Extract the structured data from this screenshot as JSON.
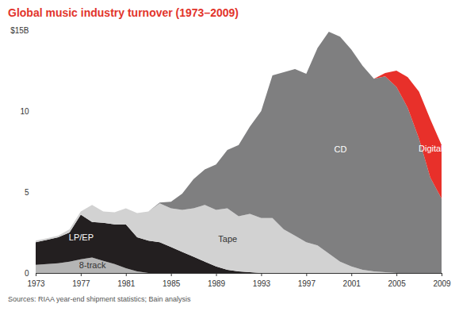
{
  "chart_data": {
    "type": "area",
    "title": "Global music industry turnover (1973–2009)",
    "source": "Sources: RIAA year-end shipment statistics; Bain analysis",
    "stacked": true,
    "grid": false,
    "x": [
      1973,
      1974,
      1975,
      1976,
      1977,
      1978,
      1979,
      1980,
      1981,
      1982,
      1983,
      1984,
      1985,
      1986,
      1987,
      1988,
      1989,
      1990,
      1991,
      1992,
      1993,
      1994,
      1995,
      1996,
      1997,
      1998,
      1999,
      2000,
      2001,
      2002,
      2003,
      2004,
      2005,
      2006,
      2007,
      2008,
      2009
    ],
    "xlim": [
      1973,
      2009
    ],
    "xticks": [
      1973,
      1977,
      1981,
      1985,
      1989,
      1993,
      1997,
      2001,
      2005,
      2009
    ],
    "ylim": [
      0,
      15
    ],
    "yticks": [
      0,
      5,
      10,
      {
        "value": 15,
        "label": "$15B"
      }
    ],
    "series": [
      {
        "name": "8-track",
        "color": "#b5b5b5",
        "values": [
          0.5,
          0.55,
          0.6,
          0.7,
          0.85,
          0.95,
          0.75,
          0.55,
          0.3,
          0.1,
          0,
          0,
          0,
          0,
          0,
          0,
          0,
          0,
          0,
          0,
          0,
          0,
          0,
          0,
          0,
          0,
          0,
          0,
          0,
          0,
          0,
          0,
          0,
          0,
          0,
          0,
          0
        ]
      },
      {
        "name": "LP/EP",
        "color": "#231f20",
        "values": [
          1.4,
          1.5,
          1.6,
          1.8,
          2.75,
          2.2,
          2.35,
          2.45,
          2.7,
          2.1,
          2.0,
          1.9,
          1.6,
          1.3,
          1.0,
          0.7,
          0.4,
          0.2,
          0.1,
          0.05,
          0,
          0,
          0,
          0,
          0,
          0,
          0,
          0,
          0,
          0,
          0,
          0,
          0,
          0,
          0,
          0,
          0
        ]
      },
      {
        "name": "Tape",
        "color": "#d2d2d2",
        "values": [
          0.1,
          0.1,
          0.1,
          0.2,
          0.2,
          1.05,
          0.7,
          0.75,
          1.0,
          1.5,
          1.8,
          2.4,
          2.4,
          2.6,
          3.0,
          3.5,
          3.5,
          3.8,
          3.4,
          3.6,
          3.4,
          3.4,
          2.7,
          2.3,
          1.9,
          1.7,
          1.2,
          0.7,
          0.4,
          0.2,
          0.1,
          0.05,
          0,
          0,
          0,
          0,
          0
        ]
      },
      {
        "name": "CD",
        "color": "#7f7f80",
        "values": [
          0,
          0,
          0,
          0,
          0,
          0,
          0,
          0,
          0,
          0,
          0,
          0.05,
          0.4,
          1.0,
          1.8,
          2.2,
          2.8,
          3.6,
          4.4,
          5.4,
          6.6,
          8.8,
          9.7,
          10.3,
          10.4,
          12.2,
          13.7,
          13.9,
          13.4,
          12.6,
          11.9,
          12.1,
          11.5,
          10.2,
          8.3,
          5.9,
          4.6
        ]
      },
      {
        "name": "Digital",
        "color": "#e8302a",
        "values": [
          0,
          0,
          0,
          0,
          0,
          0,
          0,
          0,
          0,
          0,
          0,
          0,
          0,
          0,
          0,
          0,
          0,
          0,
          0,
          0,
          0,
          0,
          0,
          0,
          0,
          0,
          0,
          0,
          0,
          0,
          0,
          0.2,
          1.0,
          1.9,
          2.9,
          3.6,
          3.3
        ]
      }
    ]
  }
}
